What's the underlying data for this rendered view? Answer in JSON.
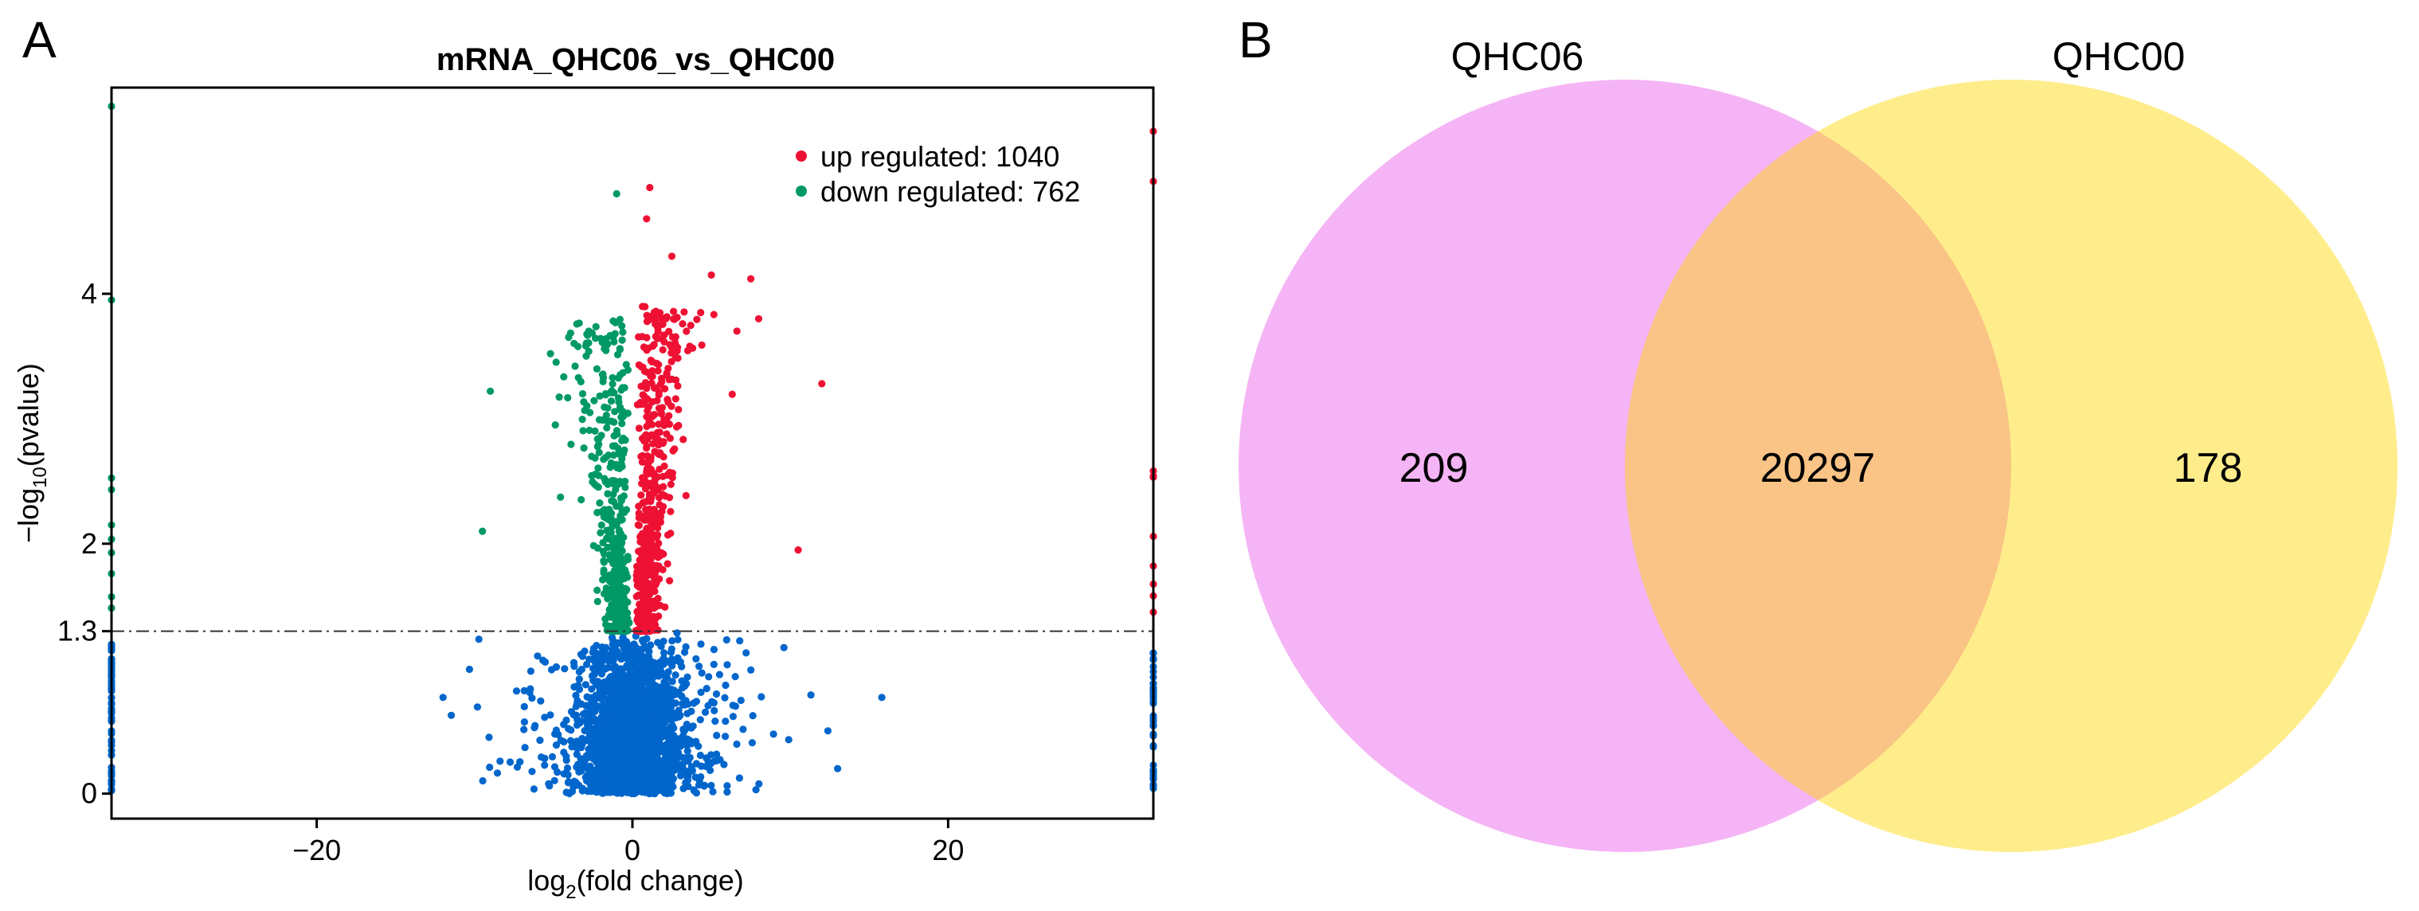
{
  "panel_labels": {
    "a": "A",
    "b": "B"
  },
  "chart_data": [
    {
      "type": "scatter",
      "title": "mRNA_QHC06_vs_QHC00",
      "xlabel_prefix": "log",
      "xlabel_sub": "2",
      "xlabel_suffix": "(fold change)",
      "ylabel_prefix": "−log",
      "ylabel_sub": "10",
      "ylabel_suffix": "(pvalue)",
      "xlim": [
        -33,
        33
      ],
      "ylim": [
        -0.2,
        5.65
      ],
      "xticks": [
        -20,
        0,
        20
      ],
      "xtick_labels": [
        "−20",
        "0",
        "20"
      ],
      "yticks": [
        0,
        1.3,
        2,
        4
      ],
      "ytick_labels": [
        "0",
        "1.3",
        "2",
        "4"
      ],
      "threshold_y": 1.3,
      "legend": {
        "position": "top-right",
        "entries": [
          {
            "label": "up regulated: 1040",
            "color": "#ee1133"
          },
          {
            "label": "down regulated: 762",
            "color": "#009966"
          }
        ]
      },
      "series": [
        {
          "name": "up regulated",
          "count": 1040,
          "color": "#ee1133"
        },
        {
          "name": "down regulated",
          "count": 762,
          "color": "#009966"
        },
        {
          "name": "not significant",
          "color": "#0066cc"
        }
      ],
      "notable_points": [
        {
          "x": 1.1,
          "y": 4.85,
          "group": "up"
        },
        {
          "x": 0.9,
          "y": 4.6,
          "group": "up"
        },
        {
          "x": 2.5,
          "y": 4.3,
          "group": "up"
        },
        {
          "x": 5.0,
          "y": 4.15,
          "group": "up"
        },
        {
          "x": 7.5,
          "y": 4.12,
          "group": "up"
        },
        {
          "x": 8.0,
          "y": 3.8,
          "group": "up"
        },
        {
          "x": 12.0,
          "y": 3.28,
          "group": "up"
        },
        {
          "x": 10.5,
          "y": 1.95,
          "group": "up"
        },
        {
          "x": -1.0,
          "y": 4.8,
          "group": "down"
        },
        {
          "x": -9.0,
          "y": 3.22,
          "group": "down"
        },
        {
          "x": -9.5,
          "y": 2.1,
          "group": "down"
        },
        {
          "x": 15.8,
          "y": 0.77,
          "group": "ns"
        },
        {
          "x": 13.0,
          "y": 0.2,
          "group": "ns"
        },
        {
          "x": -12.0,
          "y": 0.77,
          "group": "ns"
        },
        {
          "x": 33,
          "y": 5.3,
          "group": "up"
        },
        {
          "x": 33,
          "y": 4.9,
          "group": "up"
        },
        {
          "x": -33,
          "y": 5.5,
          "group": "down"
        },
        {
          "x": -33,
          "y": 3.95,
          "group": "down"
        }
      ]
    },
    {
      "type": "venn",
      "sets": [
        {
          "label": "QHC06",
          "only": 209,
          "color": "#ee82ee"
        },
        {
          "label": "QHC00",
          "only": 178,
          "color": "#ffd700"
        }
      ],
      "intersection": 20297,
      "intersection_color": "#f5a57a"
    }
  ]
}
